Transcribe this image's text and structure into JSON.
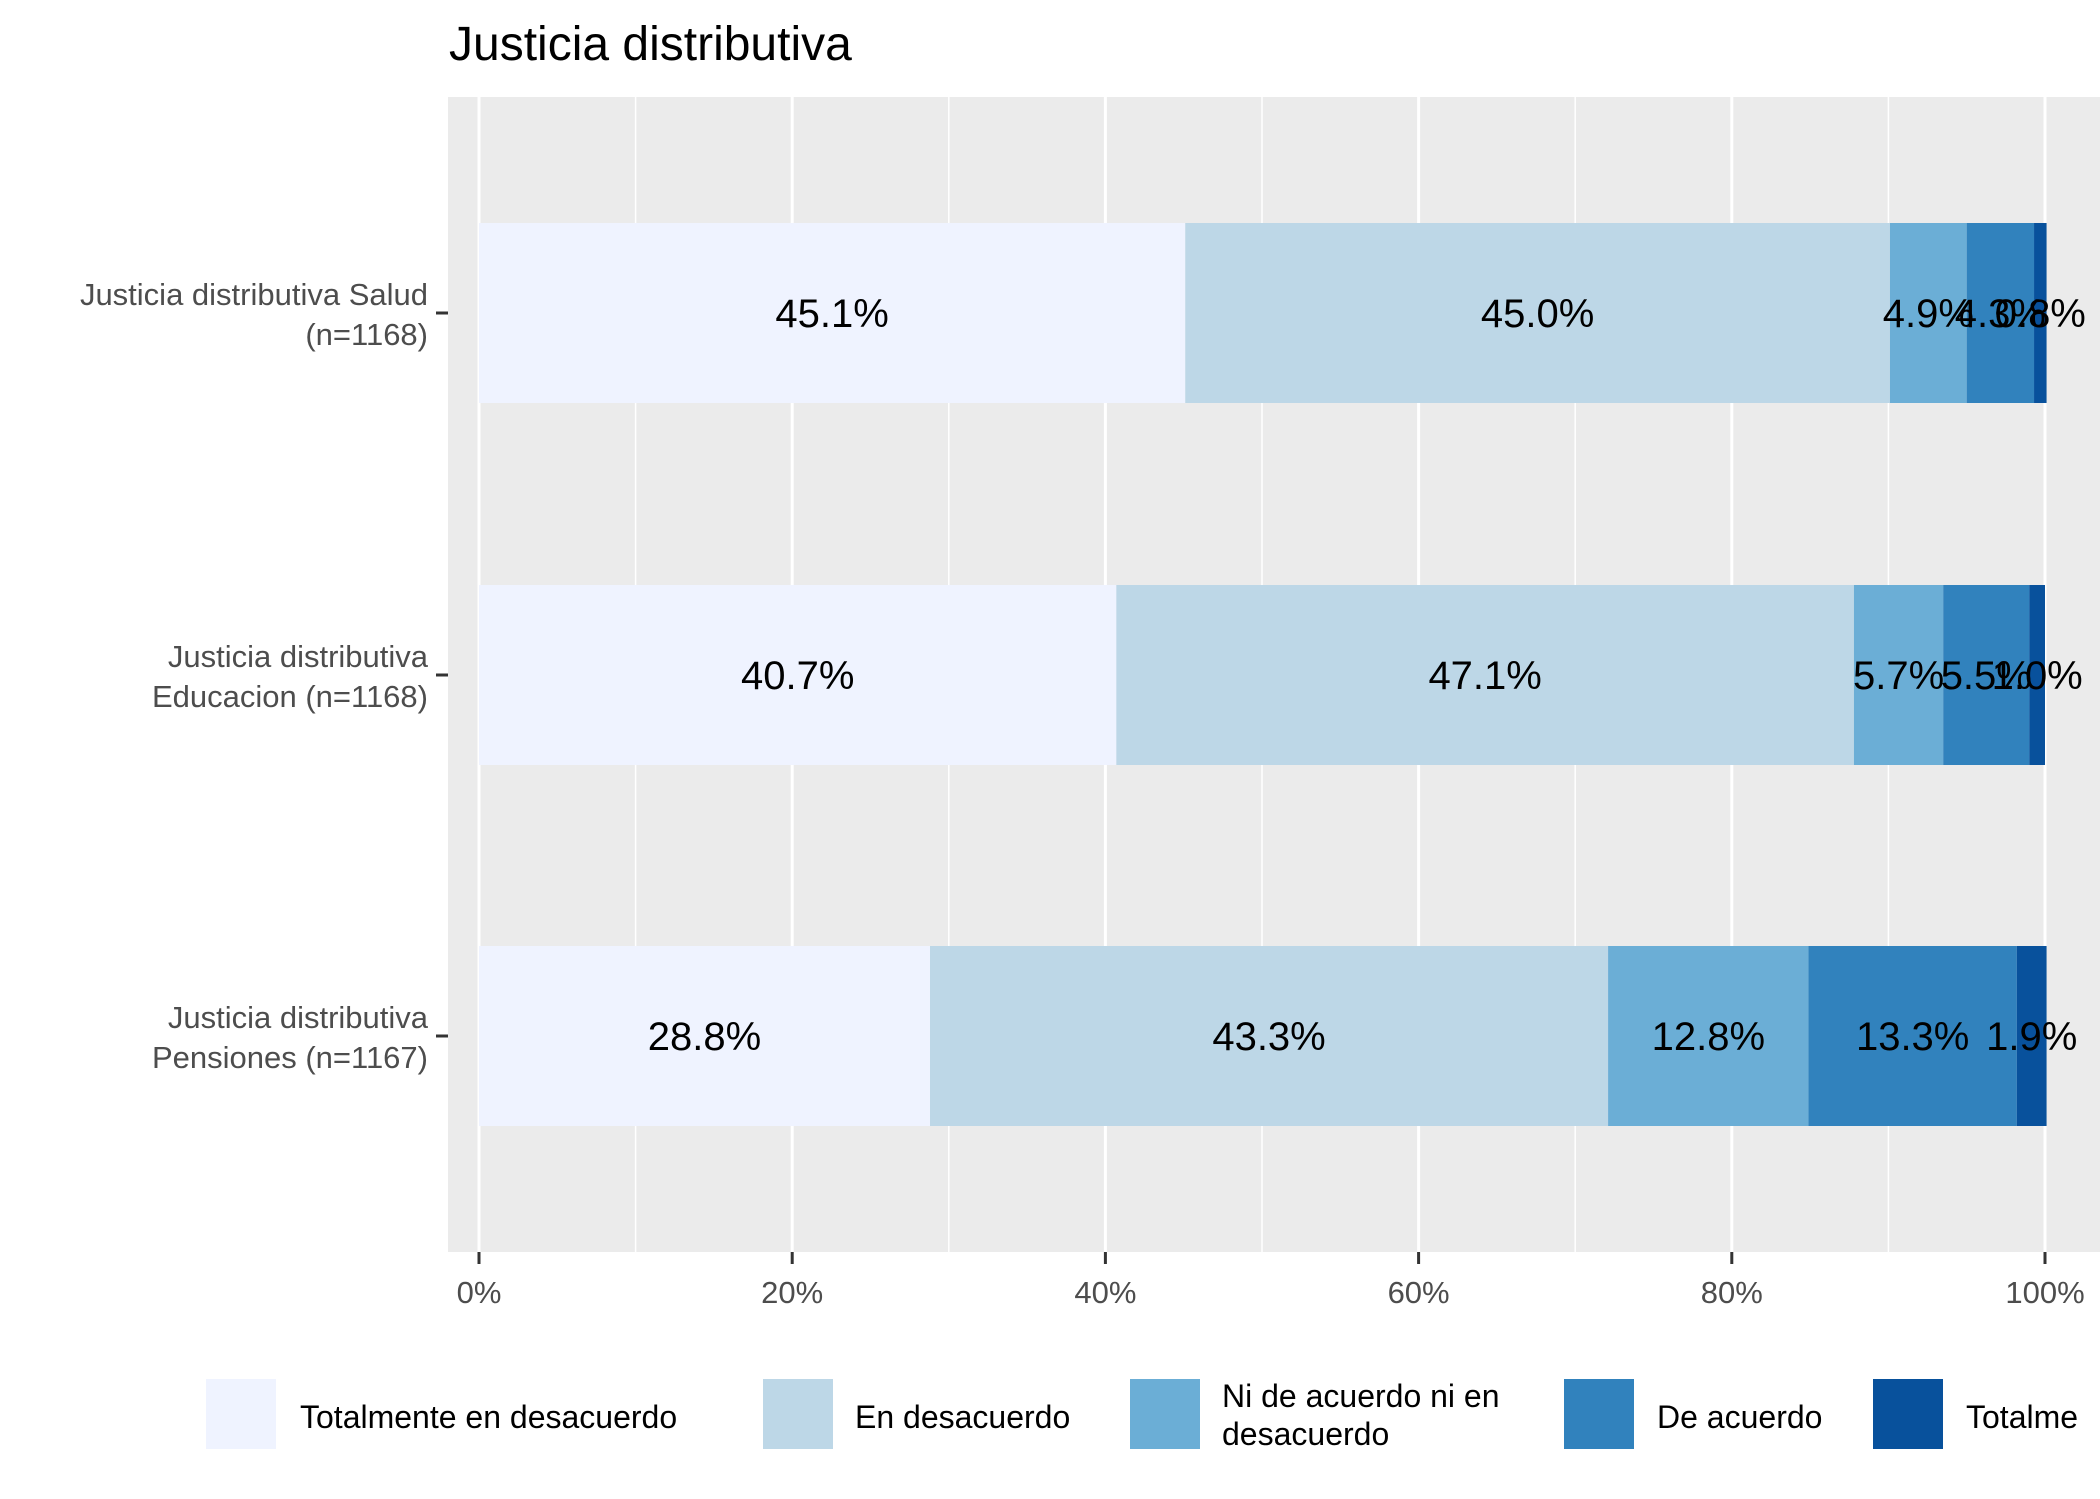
{
  "chart_data": {
    "type": "bar",
    "orientation": "horizontal",
    "stacked": "percent",
    "title": "Justicia distributiva",
    "xlabel": "",
    "ylabel": "",
    "xlim": [
      0,
      100
    ],
    "xticks": [
      "0%",
      "20%",
      "40%",
      "60%",
      "80%",
      "100%"
    ],
    "grid": true,
    "legend_position": "bottom",
    "categories": [
      "Justicia distributiva Salud (n=1168)",
      "Justicia distributiva Educacion (n=1168)",
      "Justicia distributiva Pensiones (n=1167)"
    ],
    "category_label_lines": [
      [
        "Justicia distributiva Salud",
        "(n=1168)"
      ],
      [
        "Justicia distributiva",
        "Educacion (n=1168)"
      ],
      [
        "Justicia distributiva",
        "Pensiones (n=1167)"
      ]
    ],
    "series": [
      {
        "name": "Totalmente en desacuerdo",
        "color": "#eff3ff",
        "values": [
          45.1,
          40.7,
          28.8
        ],
        "labels": [
          "45.1%",
          "40.7%",
          "28.8%"
        ]
      },
      {
        "name": "En desacuerdo",
        "color": "#bdd7e7",
        "values": [
          45.0,
          47.1,
          43.3
        ],
        "labels": [
          "45.0%",
          "47.1%",
          "43.3%"
        ]
      },
      {
        "name": "Ni de acuerdo ni en desacuerdo",
        "color": "#6baed6",
        "values": [
          4.9,
          5.7,
          12.8
        ],
        "labels": [
          "4.9%",
          "5.7%",
          "12.8%"
        ]
      },
      {
        "name": "De acuerdo",
        "color": "#3182bd",
        "values": [
          4.3,
          5.5,
          13.3
        ],
        "labels": [
          "4.3%",
          "5.5%",
          "13.3%"
        ]
      },
      {
        "name": "Totalmente de acuerdo",
        "color": "#08519c",
        "values": [
          0.8,
          1.0,
          1.9
        ],
        "labels": [
          "0.8%",
          "1.0%",
          "1.9%"
        ]
      }
    ],
    "legend_entries": [
      {
        "lines": [
          "Totalmente en desacuerdo"
        ],
        "color": "#eff3ff"
      },
      {
        "lines": [
          "En desacuerdo"
        ],
        "color": "#bdd7e7"
      },
      {
        "lines": [
          "Ni de acuerdo ni en",
          "desacuerdo"
        ],
        "color": "#6baed6"
      },
      {
        "lines": [
          "De acuerdo"
        ],
        "color": "#3182bd"
      },
      {
        "lines": [
          "Totalme"
        ],
        "color": "#08519c"
      }
    ]
  },
  "colors": {
    "panel_background": "#ebebeb",
    "grid": "#ffffff",
    "axis_text": "#4d4d4d"
  }
}
